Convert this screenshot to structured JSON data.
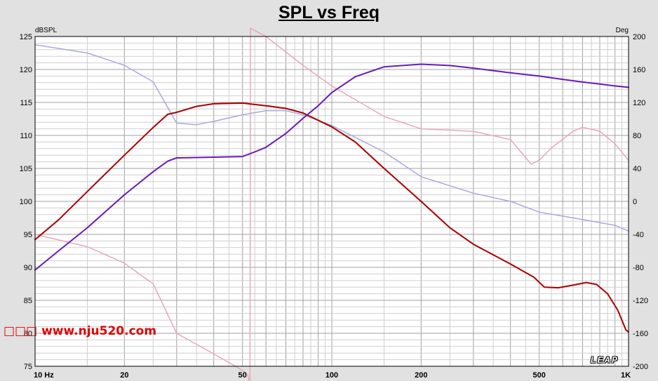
{
  "chart_data": {
    "type": "line",
    "title": "SPL vs Freq",
    "left_axis_unit": "dBSPL",
    "right_axis_unit": "Deg",
    "x_scale": "log",
    "xlim": [
      10,
      1000
    ],
    "ylim": [
      75,
      125
    ],
    "y2lim": [
      -200,
      200
    ],
    "grid": true,
    "x_tick_labels": [
      {
        "v": 10,
        "t": "10  Hz"
      },
      {
        "v": 20,
        "t": "20"
      },
      {
        "v": 50,
        "t": "50"
      },
      {
        "v": 100,
        "t": "100"
      },
      {
        "v": 200,
        "t": "200"
      },
      {
        "v": 500,
        "t": "500"
      },
      {
        "v": 1000,
        "t": "1K"
      }
    ],
    "y_ticks": [
      75,
      80,
      85,
      90,
      95,
      100,
      105,
      110,
      115,
      120,
      125
    ],
    "y2_ticks": [
      -200,
      -160,
      -120,
      -80,
      -40,
      0,
      40,
      80,
      120,
      160,
      200
    ],
    "series": [
      {
        "axis": "left",
        "color": "#a80000",
        "width": 2,
        "points": [
          [
            10,
            94.2
          ],
          [
            12,
            97.2
          ],
          [
            15,
            101.5
          ],
          [
            20,
            107.0
          ],
          [
            25,
            111.2
          ],
          [
            28,
            113.2
          ],
          [
            30,
            113.5
          ],
          [
            35,
            114.4
          ],
          [
            40,
            114.8
          ],
          [
            50,
            114.9
          ],
          [
            60,
            114.5
          ],
          [
            70,
            114.1
          ],
          [
            80,
            113.4
          ],
          [
            100,
            111.3
          ],
          [
            120,
            109.0
          ],
          [
            150,
            105.0
          ],
          [
            200,
            100.0
          ],
          [
            250,
            96.0
          ],
          [
            300,
            93.5
          ],
          [
            400,
            90.5
          ],
          [
            480,
            88.5
          ],
          [
            520,
            87.0
          ],
          [
            580,
            86.9
          ],
          [
            650,
            87.3
          ],
          [
            720,
            87.7
          ],
          [
            780,
            87.4
          ],
          [
            850,
            86.0
          ],
          [
            920,
            83.5
          ],
          [
            980,
            80.5
          ],
          [
            1000,
            80.2
          ]
        ]
      },
      {
        "axis": "left",
        "color": "#6a1ab8",
        "width": 2,
        "points": [
          [
            10,
            89.6
          ],
          [
            12,
            92.5
          ],
          [
            15,
            96.0
          ],
          [
            20,
            101.0
          ],
          [
            25,
            104.5
          ],
          [
            28,
            106.1
          ],
          [
            30,
            106.6
          ],
          [
            40,
            106.7
          ],
          [
            50,
            106.8
          ],
          [
            55,
            107.5
          ],
          [
            60,
            108.2
          ],
          [
            70,
            110.3
          ],
          [
            80,
            112.6
          ],
          [
            90,
            114.5
          ],
          [
            100,
            116.5
          ],
          [
            120,
            118.9
          ],
          [
            150,
            120.4
          ],
          [
            200,
            120.8
          ],
          [
            250,
            120.6
          ],
          [
            300,
            120.2
          ],
          [
            400,
            119.5
          ],
          [
            500,
            119.0
          ],
          [
            600,
            118.5
          ],
          [
            700,
            118.1
          ],
          [
            800,
            117.8
          ],
          [
            900,
            117.5
          ],
          [
            1000,
            117.3
          ]
        ]
      },
      {
        "axis": "right",
        "color": "#a8a8e0",
        "width": 1.5,
        "points": [
          [
            10,
            190
          ],
          [
            15,
            180
          ],
          [
            20,
            165
          ],
          [
            25,
            145
          ],
          [
            30,
            95
          ],
          [
            35,
            93
          ],
          [
            40,
            97
          ],
          [
            50,
            105
          ],
          [
            60,
            110
          ],
          [
            70,
            110
          ],
          [
            80,
            105
          ],
          [
            100,
            92
          ],
          [
            150,
            60
          ],
          [
            200,
            30
          ],
          [
            300,
            10
          ],
          [
            400,
            0
          ],
          [
            500,
            -13
          ],
          [
            700,
            -22
          ],
          [
            900,
            -29
          ],
          [
            1000,
            -36
          ]
        ]
      },
      {
        "axis": "right",
        "color": "#e8a8b8",
        "width": 1.5,
        "points": [
          [
            10,
            -40
          ],
          [
            15,
            -55
          ],
          [
            20,
            -75
          ],
          [
            25,
            -100
          ],
          [
            30,
            -160
          ],
          [
            40,
            -185
          ],
          [
            50,
            -205
          ],
          [
            52,
            -210
          ],
          [
            53,
            -220
          ],
          [
            53.2,
            210
          ],
          [
            60,
            200
          ],
          [
            80,
            165
          ],
          [
            100,
            140
          ],
          [
            150,
            103
          ],
          [
            200,
            88
          ],
          [
            300,
            85
          ],
          [
            400,
            75
          ],
          [
            470,
            45
          ],
          [
            500,
            50
          ],
          [
            550,
            65
          ],
          [
            650,
            85
          ],
          [
            700,
            90
          ],
          [
            800,
            85
          ],
          [
            900,
            70
          ],
          [
            1000,
            50
          ]
        ]
      }
    ]
  },
  "watermark": "□□□ www.nju520.com",
  "logo": "LEAP"
}
